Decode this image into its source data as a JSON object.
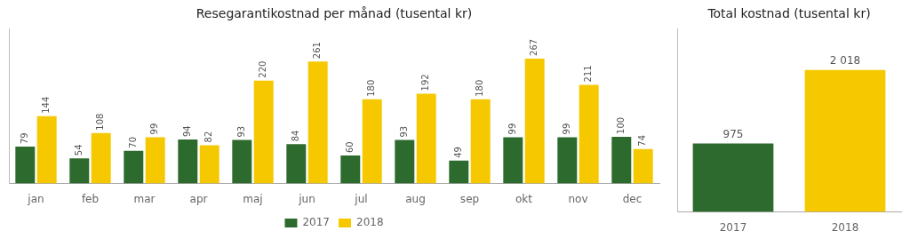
{
  "chart_data": [
    {
      "type": "bar",
      "title": "Resegarantikostnad per månad (tusental kr)",
      "categories": [
        "jan",
        "feb",
        "mar",
        "apr",
        "maj",
        "jun",
        "jul",
        "aug",
        "sep",
        "okt",
        "nov",
        "dec"
      ],
      "series": [
        {
          "name": "2017",
          "color": "#2d6a2d",
          "values": [
            79,
            54,
            70,
            94,
            93,
            84,
            60,
            93,
            49,
            99,
            99,
            100
          ]
        },
        {
          "name": "2018",
          "color": "#f5c800",
          "values": [
            144,
            108,
            99,
            82,
            220,
            261,
            180,
            192,
            180,
            267,
            211,
            74
          ]
        }
      ],
      "ylim": [
        0,
        330
      ],
      "grid": false,
      "legend": "bottom",
      "data_labels": true,
      "tick_labels": "x"
    },
    {
      "type": "bar",
      "title": "Total kostnad (tusental kr)",
      "categories": [
        "2017",
        "2018"
      ],
      "values": [
        975,
        2018
      ],
      "value_labels": [
        "975",
        "2 018"
      ],
      "colors": [
        "#2d6a2d",
        "#f5c800"
      ],
      "ylim": [
        0,
        2600
      ],
      "grid": false,
      "data_labels": true,
      "tick_labels": "x"
    }
  ]
}
